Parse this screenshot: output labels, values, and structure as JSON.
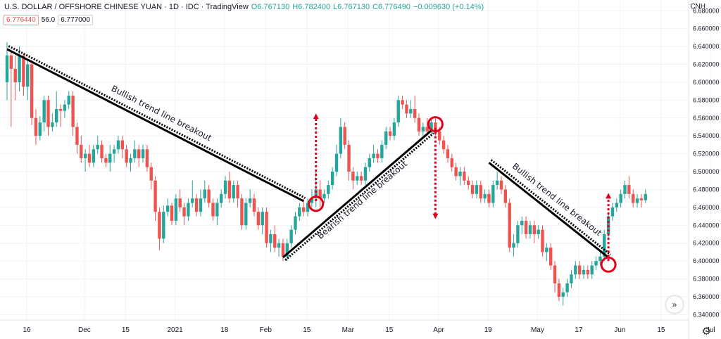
{
  "header": {
    "symbol": "U.S. DOLLAR / OFFSHORE CHINESE YUAN · 1D · IDC · TradingView",
    "open": "O6.767130",
    "high": "H6.782400",
    "low": "L6.767130",
    "close": "C6.776490",
    "change": "−0.009630 (+0.14%)"
  },
  "badges": {
    "price": "6.776440",
    "spread": "56.0",
    "price2": "6.777000"
  },
  "currency": "CNH",
  "scroll_icon": "double-chevron-right-icon",
  "settings_icon": "gear-icon",
  "colors": {
    "up": "#26a69a",
    "down": "#ef5350",
    "grid": "#f0f3fa",
    "annotation": "#000000",
    "arrow": "#e0001b"
  },
  "chart_data": {
    "type": "candlestick",
    "y_axis_ticks": [
      "6.680000",
      "6.660000",
      "6.640000",
      "6.620000",
      "6.600000",
      "6.580000",
      "6.560000",
      "6.540000",
      "6.520000",
      "6.500000",
      "6.480000",
      "6.460000",
      "6.440000",
      "6.420000",
      "6.400000",
      "6.380000",
      "6.360000",
      "6.340000"
    ],
    "ylim": [
      6.334,
      6.692
    ],
    "x_axis_ticks": [
      "16",
      "Dec",
      "15",
      "2021",
      "18",
      "Feb",
      "15",
      "Mar",
      "15",
      "Apr",
      "19",
      "May",
      "17",
      "Jun",
      "15",
      "Jul"
    ],
    "x_ticks_index": [
      0,
      14,
      24,
      36,
      48,
      58,
      68,
      78,
      88,
      100,
      112,
      124,
      134,
      144,
      154,
      166
    ],
    "annotations": [
      "Bullish trend line breakout",
      "Bearish trend line breakout",
      "Bullish trend line breakout"
    ],
    "trend_lines": [
      {
        "label": "Bullish trend line breakout",
        "from": [
          0,
          6.637
        ],
        "to": [
          72,
          6.467
        ]
      },
      {
        "label": "Bearish trend line breakout",
        "from": [
          67,
          6.404
        ],
        "to": [
          103,
          6.546
        ]
      },
      {
        "label": "Bullish trend line breakout",
        "from": [
          117,
          6.51
        ],
        "to": [
          146,
          6.404
        ]
      }
    ],
    "breakout_circles": [
      [
        75,
        6.464
      ],
      [
        104,
        6.553
      ],
      [
        146,
        6.396
      ]
    ],
    "arrows": [
      {
        "x": 75,
        "from": 6.467,
        "to": 6.562,
        "direction": "up"
      },
      {
        "x": 104,
        "from": 6.549,
        "to": 6.45,
        "direction": "down"
      },
      {
        "x": 146,
        "from": 6.4,
        "to": 6.473,
        "direction": "up"
      }
    ],
    "candles": [
      [
        6.6,
        6.63,
        6.645,
        6.58
      ],
      [
        6.63,
        6.615,
        6.635,
        6.55
      ],
      [
        6.615,
        6.6,
        6.63,
        6.58
      ],
      [
        6.6,
        6.63,
        6.64,
        6.59
      ],
      [
        6.63,
        6.595,
        6.632,
        6.585
      ],
      [
        6.595,
        6.62,
        6.625,
        6.58
      ],
      [
        6.62,
        6.56,
        6.625,
        6.552
      ],
      [
        6.56,
        6.54,
        6.57,
        6.53
      ],
      [
        6.54,
        6.555,
        6.562,
        6.535
      ],
      [
        6.555,
        6.58,
        6.585,
        6.545
      ],
      [
        6.58,
        6.55,
        6.585,
        6.54
      ],
      [
        6.55,
        6.555,
        6.565,
        6.545
      ],
      [
        6.555,
        6.57,
        6.59,
        6.55
      ],
      [
        6.57,
        6.568,
        6.575,
        6.55
      ],
      [
        6.568,
        6.575,
        6.58,
        6.56
      ],
      [
        6.575,
        6.585,
        6.59,
        6.57
      ],
      [
        6.585,
        6.55,
        6.59,
        6.54
      ],
      [
        6.55,
        6.53,
        6.555,
        6.52
      ],
      [
        6.53,
        6.515,
        6.54,
        6.51
      ],
      [
        6.515,
        6.52,
        6.525,
        6.5
      ],
      [
        6.52,
        6.51,
        6.53,
        6.505
      ],
      [
        6.51,
        6.525,
        6.53,
        6.505
      ],
      [
        6.525,
        6.53,
        6.54,
        6.52
      ],
      [
        6.53,
        6.515,
        6.535,
        6.51
      ],
      [
        6.515,
        6.51,
        6.52,
        6.505
      ],
      [
        6.51,
        6.52,
        6.53,
        6.5
      ],
      [
        6.52,
        6.525,
        6.53,
        6.51
      ],
      [
        6.525,
        6.535,
        6.54,
        6.52
      ],
      [
        6.535,
        6.525,
        6.54,
        6.515
      ],
      [
        6.525,
        6.51,
        6.53,
        6.505
      ],
      [
        6.51,
        6.515,
        6.52,
        6.5
      ],
      [
        6.515,
        6.525,
        6.535,
        6.51
      ],
      [
        6.525,
        6.515,
        6.53,
        6.505
      ],
      [
        6.515,
        6.525,
        6.53,
        6.51
      ],
      [
        6.525,
        6.505,
        6.53,
        6.5
      ],
      [
        6.505,
        6.49,
        6.51,
        6.48
      ],
      [
        6.49,
        6.455,
        6.495,
        6.445
      ],
      [
        6.455,
        6.425,
        6.46,
        6.412
      ],
      [
        6.425,
        6.455,
        6.462,
        6.42
      ],
      [
        6.455,
        6.462,
        6.47,
        6.45
      ],
      [
        6.462,
        6.445,
        6.465,
        6.44
      ],
      [
        6.445,
        6.47,
        6.475,
        6.44
      ],
      [
        6.47,
        6.46,
        6.48,
        6.455
      ],
      [
        6.46,
        6.45,
        6.465,
        6.44
      ],
      [
        6.45,
        6.465,
        6.47,
        6.445
      ],
      [
        6.465,
        6.47,
        6.49,
        6.46
      ],
      [
        6.47,
        6.455,
        6.475,
        6.45
      ],
      [
        6.455,
        6.47,
        6.48,
        6.45
      ],
      [
        6.47,
        6.48,
        6.49,
        6.465
      ],
      [
        6.48,
        6.465,
        6.485,
        6.46
      ],
      [
        6.465,
        6.45,
        6.47,
        6.445
      ],
      [
        6.45,
        6.465,
        6.47,
        6.44
      ],
      [
        6.465,
        6.475,
        6.48,
        6.46
      ],
      [
        6.475,
        6.49,
        6.495,
        6.47
      ],
      [
        6.49,
        6.47,
        6.5,
        6.465
      ],
      [
        6.47,
        6.485,
        6.49,
        6.465
      ],
      [
        6.485,
        6.47,
        6.49,
        6.46
      ],
      [
        6.47,
        6.44,
        6.475,
        6.435
      ],
      [
        6.44,
        6.465,
        6.47,
        6.435
      ],
      [
        6.465,
        6.47,
        6.48,
        6.46
      ],
      [
        6.47,
        6.455,
        6.475,
        6.45
      ],
      [
        6.455,
        6.44,
        6.46,
        6.435
      ],
      [
        6.44,
        6.455,
        6.46,
        6.43
      ],
      [
        6.455,
        6.42,
        6.46,
        6.415
      ],
      [
        6.42,
        6.43,
        6.435,
        6.41
      ],
      [
        6.43,
        6.415,
        6.44,
        6.41
      ],
      [
        6.415,
        6.42,
        6.425,
        6.405
      ],
      [
        6.42,
        6.405,
        6.425,
        6.4
      ],
      [
        6.405,
        6.42,
        6.425,
        6.4
      ],
      [
        6.42,
        6.435,
        6.44,
        6.415
      ],
      [
        6.435,
        6.45,
        6.455,
        6.43
      ],
      [
        6.45,
        6.46,
        6.465,
        6.445
      ],
      [
        6.46,
        6.455,
        6.47,
        6.45
      ],
      [
        6.455,
        6.465,
        6.47,
        6.45
      ],
      [
        6.465,
        6.47,
        6.48,
        6.46
      ],
      [
        6.47,
        6.48,
        6.5,
        6.46
      ],
      [
        6.48,
        6.47,
        6.49,
        6.46
      ],
      [
        6.47,
        6.475,
        6.48,
        6.465
      ],
      [
        6.475,
        6.485,
        6.49,
        6.47
      ],
      [
        6.485,
        6.5,
        6.505,
        6.48
      ],
      [
        6.5,
        6.52,
        6.53,
        6.495
      ],
      [
        6.52,
        6.55,
        6.56,
        6.515
      ],
      [
        6.55,
        6.53,
        6.555,
        6.525
      ],
      [
        6.53,
        6.5,
        6.535,
        6.49
      ],
      [
        6.5,
        6.49,
        6.505,
        6.48
      ],
      [
        6.49,
        6.495,
        6.5,
        6.485
      ],
      [
        6.495,
        6.49,
        6.5,
        6.485
      ],
      [
        6.49,
        6.505,
        6.51,
        6.485
      ],
      [
        6.505,
        6.515,
        6.52,
        6.5
      ],
      [
        6.515,
        6.52,
        6.53,
        6.51
      ],
      [
        6.52,
        6.515,
        6.525,
        6.51
      ],
      [
        6.515,
        6.53,
        6.535,
        6.51
      ],
      [
        6.53,
        6.545,
        6.55,
        6.525
      ],
      [
        6.545,
        6.54,
        6.55,
        6.535
      ],
      [
        6.54,
        6.555,
        6.56,
        6.535
      ],
      [
        6.555,
        6.58,
        6.585,
        6.55
      ],
      [
        6.58,
        6.575,
        6.585,
        6.57
      ],
      [
        6.575,
        6.565,
        6.58,
        6.56
      ],
      [
        6.565,
        6.57,
        6.58,
        6.56
      ],
      [
        6.57,
        6.56,
        6.585,
        6.555
      ],
      [
        6.56,
        6.545,
        6.565,
        6.54
      ],
      [
        6.545,
        6.55,
        6.555,
        6.54
      ],
      [
        6.55,
        6.545,
        6.56,
        6.54
      ],
      [
        6.545,
        6.555,
        6.56,
        6.54
      ],
      [
        6.555,
        6.545,
        6.56,
        6.54
      ],
      [
        6.545,
        6.535,
        6.55,
        6.53
      ],
      [
        6.535,
        6.525,
        6.54,
        6.52
      ],
      [
        6.525,
        6.515,
        6.53,
        6.51
      ],
      [
        6.515,
        6.505,
        6.52,
        6.5
      ],
      [
        6.505,
        6.495,
        6.51,
        6.49
      ],
      [
        6.495,
        6.5,
        6.505,
        6.485
      ],
      [
        6.5,
        6.49,
        6.505,
        6.485
      ],
      [
        6.49,
        6.485,
        6.495,
        6.48
      ],
      [
        6.485,
        6.475,
        6.49,
        6.47
      ],
      [
        6.475,
        6.485,
        6.49,
        6.47
      ],
      [
        6.485,
        6.47,
        6.49,
        6.465
      ],
      [
        6.47,
        6.475,
        6.48,
        6.465
      ],
      [
        6.475,
        6.465,
        6.48,
        6.46
      ],
      [
        6.465,
        6.485,
        6.49,
        6.46
      ],
      [
        6.485,
        6.49,
        6.5,
        6.48
      ],
      [
        6.49,
        6.48,
        6.495,
        6.475
      ],
      [
        6.48,
        6.465,
        6.485,
        6.46
      ],
      [
        6.465,
        6.415,
        6.47,
        6.41
      ],
      [
        6.415,
        6.42,
        6.43,
        6.405
      ],
      [
        6.42,
        6.44,
        6.445,
        6.415
      ],
      [
        6.44,
        6.445,
        6.45,
        6.43
      ],
      [
        6.445,
        6.43,
        6.45,
        6.425
      ],
      [
        6.43,
        6.44,
        6.445,
        6.425
      ],
      [
        6.44,
        6.43,
        6.445,
        6.42
      ],
      [
        6.43,
        6.435,
        6.44,
        6.425
      ],
      [
        6.435,
        6.41,
        6.44,
        6.405
      ],
      [
        6.41,
        6.415,
        6.42,
        6.4
      ],
      [
        6.415,
        6.395,
        6.42,
        6.39
      ],
      [
        6.395,
        6.375,
        6.4,
        6.365
      ],
      [
        6.375,
        6.36,
        6.38,
        6.355
      ],
      [
        6.36,
        6.365,
        6.37,
        6.35
      ],
      [
        6.365,
        6.375,
        6.38,
        6.36
      ],
      [
        6.375,
        6.385,
        6.39,
        6.37
      ],
      [
        6.385,
        6.395,
        6.4,
        6.38
      ],
      [
        6.395,
        6.385,
        6.4,
        6.38
      ],
      [
        6.385,
        6.39,
        6.395,
        6.38
      ],
      [
        6.39,
        6.385,
        6.395,
        6.38
      ],
      [
        6.385,
        6.395,
        6.4,
        6.38
      ],
      [
        6.395,
        6.4,
        6.405,
        6.39
      ],
      [
        6.4,
        6.405,
        6.41,
        6.395
      ],
      [
        6.405,
        6.43,
        6.435,
        6.4
      ],
      [
        6.43,
        6.45,
        6.455,
        6.425
      ],
      [
        6.45,
        6.46,
        6.465,
        6.445
      ],
      [
        6.46,
        6.465,
        6.47,
        6.455
      ],
      [
        6.465,
        6.475,
        6.48,
        6.46
      ],
      [
        6.475,
        6.485,
        6.49,
        6.47
      ],
      [
        6.485,
        6.475,
        6.495,
        6.47
      ],
      [
        6.475,
        6.465,
        6.48,
        6.46
      ],
      [
        6.465,
        6.47,
        6.475,
        6.46
      ],
      [
        6.47,
        6.468,
        6.475,
        6.46
      ],
      [
        6.468,
        6.475,
        6.48,
        6.465
      ]
    ]
  }
}
